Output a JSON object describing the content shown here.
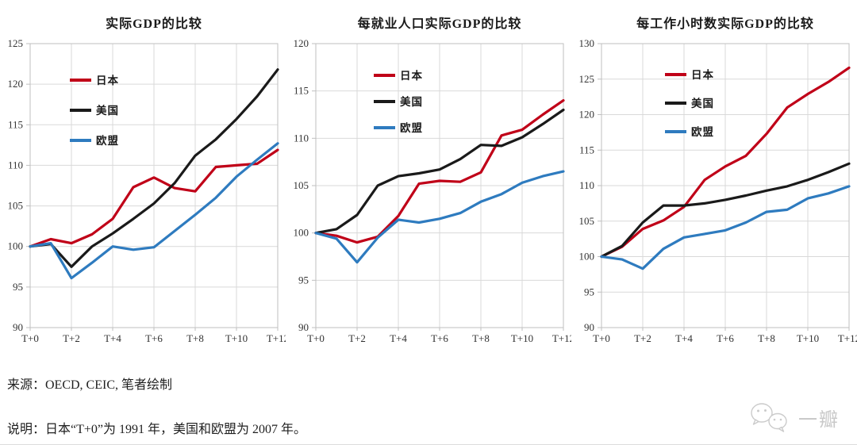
{
  "footer": {
    "source": "来源：OECD, CEIC, 笔者绘制",
    "note": "说明：日本“T+0”为 1991 年，美国和欧盟为 2007 年。"
  },
  "watermark": {
    "icon": "wechat-icon",
    "label": "一瓣",
    "color": "#c9c9c9"
  },
  "style": {
    "grid_color": "#d9d9d9",
    "axis_color": "#bfbfbf",
    "tick_label_color": "#333333",
    "legend_text_color": "#1a1a1a"
  },
  "chart_data": [
    {
      "type": "line",
      "title": "实际GDP的比较",
      "x_categories": [
        "T+0",
        "T+1",
        "T+2",
        "T+3",
        "T+4",
        "T+5",
        "T+6",
        "T+7",
        "T+8",
        "T+9",
        "T+10",
        "T+11",
        "T+12"
      ],
      "x_tick_labels": [
        "T+0",
        "T+2",
        "T+4",
        "T+6",
        "T+8",
        "T+10",
        "T+12"
      ],
      "ylim": [
        90,
        125
      ],
      "ytick_interval": 5,
      "yticks": [
        90,
        95,
        100,
        105,
        110,
        115,
        120,
        125
      ],
      "grid": true,
      "legend_position": "inside-top-left",
      "series": [
        {
          "id": "japan",
          "name": "日本",
          "color": "#c00018",
          "values": [
            100,
            100.9,
            100.4,
            101.5,
            103.4,
            107.3,
            108.5,
            107.2,
            106.8,
            109.8,
            110.0,
            110.2,
            111.9
          ]
        },
        {
          "id": "us",
          "name": "美国",
          "color": "#1a1a1a",
          "values": [
            100,
            100.3,
            97.5,
            100.0,
            101.6,
            103.4,
            105.3,
            107.8,
            111.2,
            113.2,
            115.7,
            118.5,
            121.8
          ]
        },
        {
          "id": "eu",
          "name": "欧盟",
          "color": "#2e7bbf",
          "values": [
            100,
            100.4,
            96.1,
            98.0,
            100.0,
            99.6,
            99.9,
            101.9,
            103.9,
            106.0,
            108.6,
            110.7,
            112.7
          ]
        }
      ]
    },
    {
      "type": "line",
      "title": "每就业人口实际GDP的比较",
      "x_categories": [
        "T+0",
        "T+1",
        "T+2",
        "T+3",
        "T+4",
        "T+5",
        "T+6",
        "T+7",
        "T+8",
        "T+9",
        "T+10",
        "T+11",
        "T+12"
      ],
      "x_tick_labels": [
        "T+0",
        "T+2",
        "T+4",
        "T+6",
        "T+8",
        "T+10",
        "T+12"
      ],
      "ylim": [
        90,
        120
      ],
      "ytick_interval": 5,
      "yticks": [
        90,
        95,
        100,
        105,
        110,
        115,
        120
      ],
      "grid": true,
      "legend_position": "inside-top-left",
      "series": [
        {
          "id": "japan",
          "name": "日本",
          "color": "#c00018",
          "values": [
            100,
            99.7,
            99.0,
            99.6,
            101.8,
            105.2,
            105.5,
            105.4,
            106.4,
            110.3,
            110.9,
            112.5,
            114.0
          ]
        },
        {
          "id": "us",
          "name": "美国",
          "color": "#1a1a1a",
          "values": [
            100,
            100.4,
            101.9,
            105.0,
            106.0,
            106.3,
            106.7,
            107.8,
            109.3,
            109.2,
            110.1,
            111.5,
            113.0
          ]
        },
        {
          "id": "eu",
          "name": "欧盟",
          "color": "#2e7bbf",
          "values": [
            100,
            99.4,
            96.9,
            99.5,
            101.4,
            101.1,
            101.5,
            102.1,
            103.3,
            104.1,
            105.3,
            106.0,
            106.5
          ]
        }
      ]
    },
    {
      "type": "line",
      "title": "每工作小时数实际GDP的比较",
      "x_categories": [
        "T+0",
        "T+1",
        "T+2",
        "T+3",
        "T+4",
        "T+5",
        "T+6",
        "T+7",
        "T+8",
        "T+9",
        "T+10",
        "T+11",
        "T+12"
      ],
      "x_tick_labels": [
        "T+0",
        "T+2",
        "T+4",
        "T+6",
        "T+8",
        "T+10",
        "T+12"
      ],
      "ylim": [
        90,
        130
      ],
      "ytick_interval": 5,
      "yticks": [
        90,
        95,
        100,
        105,
        110,
        115,
        120,
        125,
        130
      ],
      "grid": true,
      "legend_position": "inside-top-left",
      "series": [
        {
          "id": "japan",
          "name": "日本",
          "color": "#c00018",
          "values": [
            100,
            101.4,
            103.9,
            105.1,
            107.0,
            110.8,
            112.7,
            114.2,
            117.3,
            121.0,
            122.9,
            124.6,
            126.6
          ]
        },
        {
          "id": "us",
          "name": "美国",
          "color": "#1a1a1a",
          "values": [
            100,
            101.5,
            104.8,
            107.2,
            107.2,
            107.5,
            108.0,
            108.6,
            109.3,
            109.9,
            110.8,
            111.9,
            113.1
          ]
        },
        {
          "id": "eu",
          "name": "欧盟",
          "color": "#2e7bbf",
          "values": [
            100,
            99.6,
            98.3,
            101.1,
            102.7,
            103.2,
            103.7,
            104.8,
            106.3,
            106.6,
            108.2,
            108.9,
            109.9
          ]
        }
      ]
    }
  ]
}
